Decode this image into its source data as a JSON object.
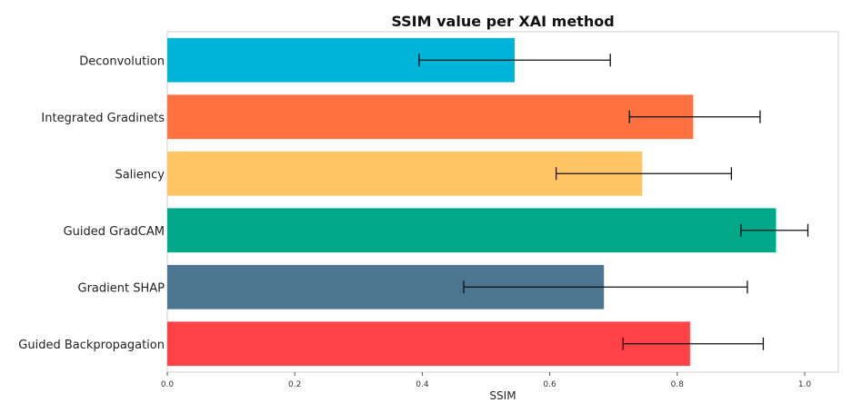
{
  "chart_data": {
    "type": "bar",
    "orientation": "horizontal",
    "title": "SSIM value per XAI method",
    "xlabel": "SSIM",
    "ylabel": "",
    "xlim": [
      0,
      1.05
    ],
    "xticks": [
      0.0,
      0.2,
      0.4,
      0.6,
      0.8,
      1.0
    ],
    "xtick_labels": [
      "0.0",
      "0.2",
      "0.4",
      "0.6",
      "0.8",
      "1.0"
    ],
    "grid": false,
    "categories": [
      "Deconvolution",
      "Integrated Gradinets",
      "Saliency",
      "Guided GradCAM",
      "Gradient SHAP",
      "Guided Backpropagation"
    ],
    "values": [
      0.545,
      0.825,
      0.745,
      0.955,
      0.685,
      0.82
    ],
    "error_low": [
      0.395,
      0.725,
      0.61,
      0.9,
      0.465,
      0.715
    ],
    "error_high": [
      0.695,
      0.93,
      0.885,
      1.005,
      0.91,
      0.935
    ],
    "colors": [
      "#00b4d8",
      "#ff7140",
      "#ffc564",
      "#00a88a",
      "#4c7590",
      "#ff4248"
    ]
  }
}
